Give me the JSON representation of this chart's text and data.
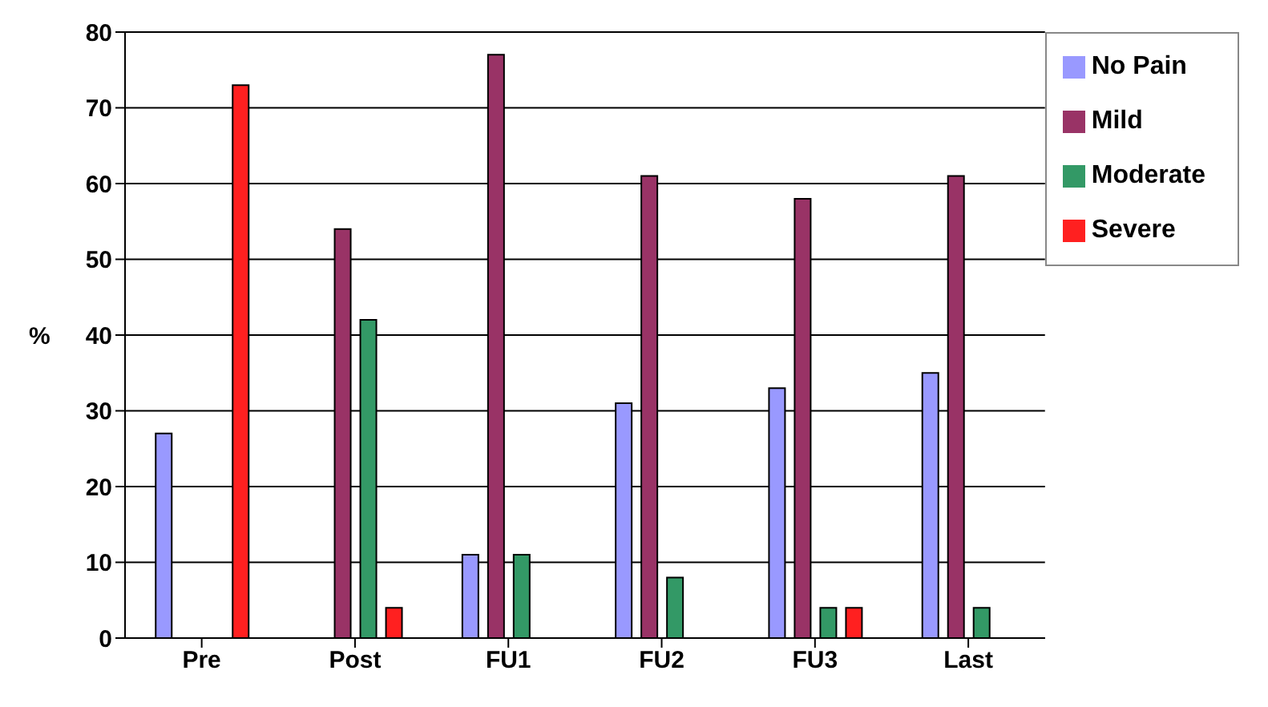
{
  "chart_data": {
    "type": "bar",
    "ylabel": "%",
    "categories": [
      "Pre",
      "Post",
      "FU1",
      "FU2",
      "FU3",
      "Last"
    ],
    "series": [
      {
        "name": "No Pain",
        "color": "#9999ff",
        "values": [
          27,
          0,
          11,
          31,
          33,
          35
        ]
      },
      {
        "name": "Mild",
        "color": "#993366",
        "values": [
          0,
          54,
          77,
          61,
          58,
          61
        ]
      },
      {
        "name": "Moderate",
        "color": "#339966",
        "values": [
          0,
          42,
          11,
          8,
          4,
          4
        ]
      },
      {
        "name": "Severe",
        "color": "#ff2020",
        "values": [
          73,
          4,
          0,
          0,
          4,
          0
        ]
      }
    ],
    "ylim": [
      0,
      80
    ],
    "yticks": [
      0,
      10,
      20,
      30,
      40,
      50,
      60,
      70,
      80
    ],
    "grid": "y",
    "legend": "top right"
  }
}
